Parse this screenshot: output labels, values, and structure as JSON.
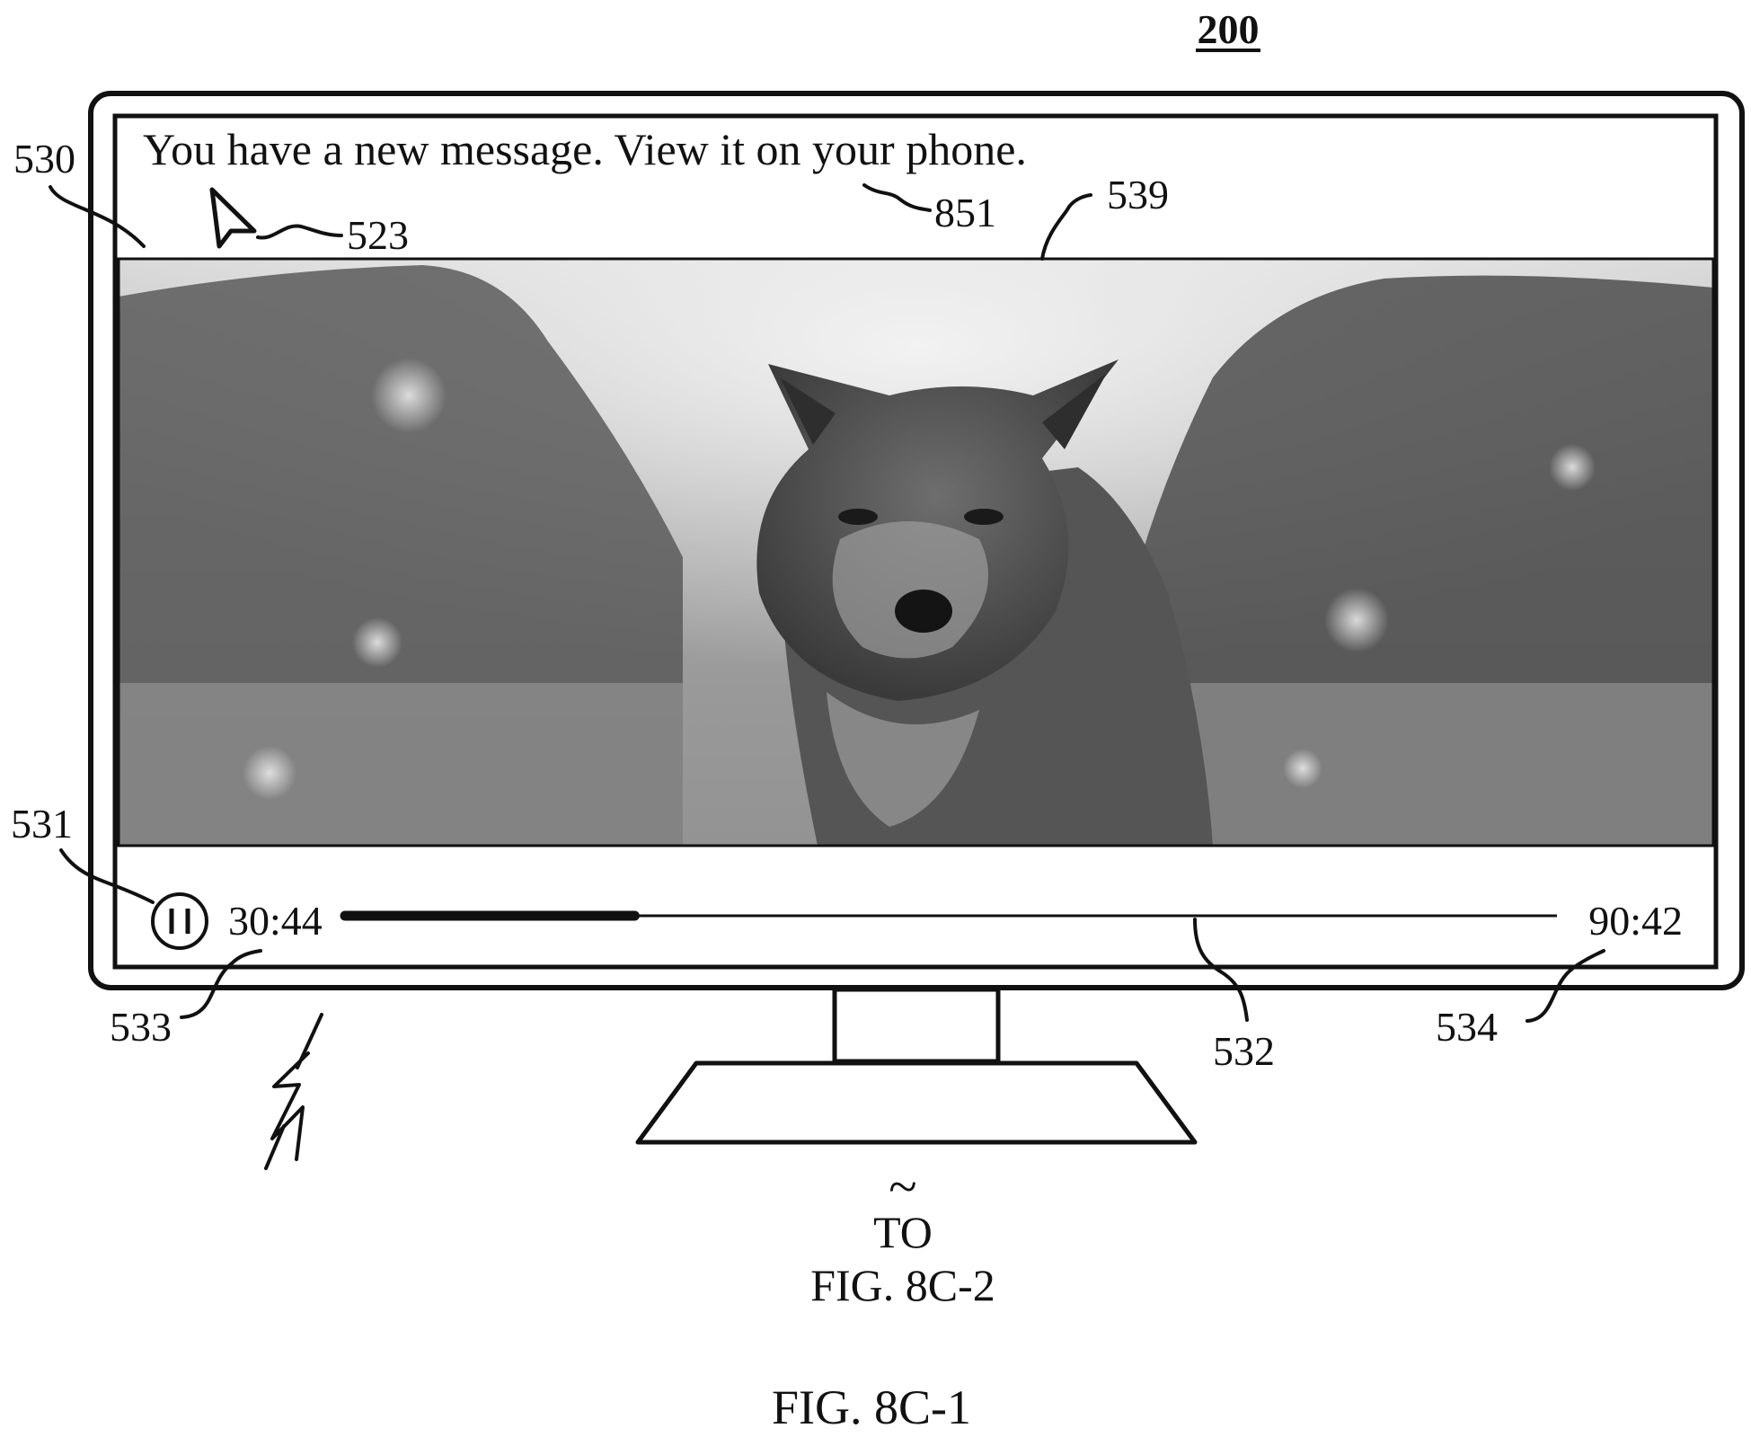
{
  "figure_number": "200",
  "notification": {
    "message": "You have a new message. View it on your phone."
  },
  "playback": {
    "elapsed": "30:44",
    "duration": "90:42",
    "progress_fraction": 0.239
  },
  "reference_labels": {
    "tv": "530",
    "cursor": "523",
    "message": "851",
    "video": "539",
    "pause_button": "531",
    "elapsed_time": "533",
    "scrubber": "532",
    "duration_time": "534"
  },
  "connector": {
    "symbol": "~",
    "to_label": "TO",
    "target": "FIG. 8C-2"
  },
  "caption": "FIG. 8C-1",
  "icons": {
    "cursor": "arrow-cursor-icon",
    "pause": "pause-icon",
    "wireless": "wireless-link-icon",
    "video_frame": "wolf-photo"
  }
}
